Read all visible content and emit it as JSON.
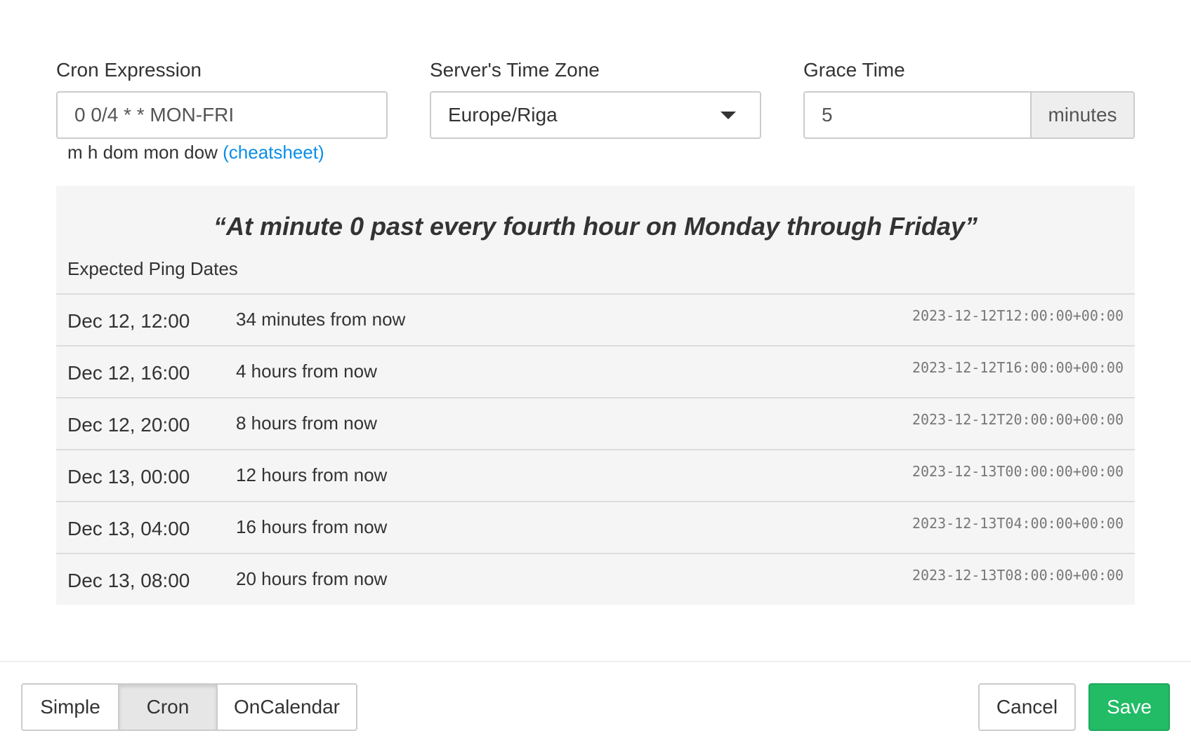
{
  "cron": {
    "label": "Cron Expression",
    "value": "0 0/4 * * MON-FRI",
    "hint": "m h dom mon dow",
    "cheatsheet": "(cheatsheet)"
  },
  "timezone": {
    "label": "Server's Time Zone",
    "value": "Europe/Riga"
  },
  "grace": {
    "label": "Grace Time",
    "value": "5",
    "unit": "minutes"
  },
  "description": "“At minute 0 past every fourth hour on Monday through Friday”",
  "expected_label": "Expected Ping Dates",
  "pings": [
    {
      "date": "Dec 12, 12:00",
      "relative": "34 minutes from now",
      "iso": "2023-12-12T12:00:00+00:00"
    },
    {
      "date": "Dec 12, 16:00",
      "relative": "4 hours from now",
      "iso": "2023-12-12T16:00:00+00:00"
    },
    {
      "date": "Dec 12, 20:00",
      "relative": "8 hours from now",
      "iso": "2023-12-12T20:00:00+00:00"
    },
    {
      "date": "Dec 13, 00:00",
      "relative": "12 hours from now",
      "iso": "2023-12-13T00:00:00+00:00"
    },
    {
      "date": "Dec 13, 04:00",
      "relative": "16 hours from now",
      "iso": "2023-12-13T04:00:00+00:00"
    },
    {
      "date": "Dec 13, 08:00",
      "relative": "20 hours from now",
      "iso": "2023-12-13T08:00:00+00:00"
    }
  ],
  "modes": {
    "simple": "Simple",
    "cron": "Cron",
    "oncalendar": "OnCalendar",
    "active": "Cron"
  },
  "actions": {
    "cancel": "Cancel",
    "save": "Save"
  },
  "colors": {
    "save": "#22bb66",
    "link": "#0a8ee8"
  }
}
